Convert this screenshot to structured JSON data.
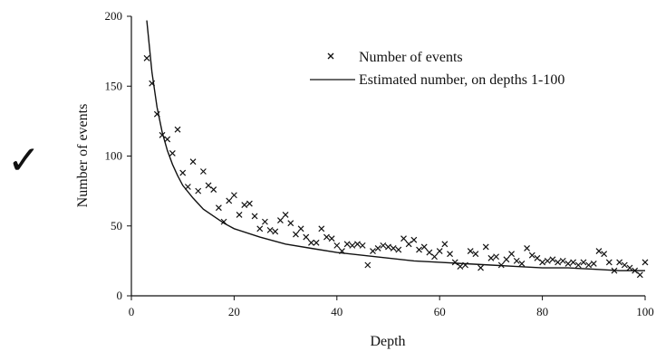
{
  "chart_data": {
    "type": "scatter",
    "title": "",
    "xlabel": "Depth",
    "ylabel": "Number of events",
    "xlim": [
      0,
      100
    ],
    "ylim": [
      0,
      200
    ],
    "xticks": [
      "0",
      "20",
      "40",
      "60",
      "80",
      "100"
    ],
    "yticks": [
      "0",
      "50",
      "100",
      "150",
      "200"
    ],
    "grid": false,
    "legend_position": "top-right",
    "series": [
      {
        "name": "Number of events",
        "kind": "markers",
        "marker": "x",
        "x": [
          3,
          4,
          5,
          6,
          7,
          8,
          9,
          10,
          11,
          12,
          13,
          14,
          15,
          16,
          17,
          18,
          19,
          20,
          21,
          22,
          23,
          24,
          25,
          26,
          27,
          28,
          29,
          30,
          31,
          32,
          33,
          34,
          35,
          36,
          37,
          38,
          39,
          40,
          41,
          42,
          43,
          44,
          45,
          46,
          47,
          48,
          49,
          50,
          51,
          52,
          53,
          54,
          55,
          56,
          57,
          58,
          59,
          60,
          61,
          62,
          63,
          64,
          65,
          66,
          67,
          68,
          69,
          70,
          71,
          72,
          73,
          74,
          75,
          76,
          77,
          78,
          79,
          80,
          81,
          82,
          83,
          84,
          85,
          86,
          87,
          88,
          89,
          90,
          91,
          92,
          93,
          94,
          95,
          96,
          97,
          98,
          99,
          100
        ],
        "y": [
          170,
          152,
          130,
          115,
          112,
          102,
          119,
          88,
          78,
          96,
          75,
          89,
          79,
          76,
          63,
          53,
          68,
          72,
          58,
          65,
          66,
          57,
          48,
          53,
          47,
          46,
          54,
          58,
          52,
          44,
          48,
          42,
          38,
          38,
          48,
          42,
          41,
          36,
          32,
          37,
          36,
          37,
          36,
          22,
          32,
          34,
          36,
          35,
          34,
          33,
          41,
          37,
          40,
          33,
          35,
          31,
          28,
          32,
          37,
          30,
          24,
          21,
          22,
          32,
          30,
          20,
          35,
          27,
          28,
          22,
          26,
          30,
          25,
          23,
          34,
          29,
          27,
          24,
          25,
          26,
          24,
          25,
          23,
          24,
          22,
          24,
          22,
          23,
          32,
          30,
          24,
          18,
          24,
          22,
          20,
          18,
          15,
          24
        ]
      },
      {
        "name": "Estimated number, on depths 1-100",
        "kind": "line",
        "x": [
          3,
          4,
          5,
          6,
          7,
          8,
          9,
          10,
          12,
          14,
          16,
          18,
          20,
          25,
          30,
          35,
          40,
          45,
          50,
          55,
          60,
          65,
          70,
          75,
          80,
          85,
          90,
          95,
          100
        ],
        "y": [
          197,
          160,
          135,
          117,
          104,
          94,
          86,
          79,
          70,
          62,
          57,
          52,
          48,
          42,
          37,
          34,
          31,
          29,
          27,
          25,
          24,
          23,
          22,
          21,
          20,
          20,
          19,
          18,
          18
        ]
      }
    ]
  },
  "decoration": {
    "check_mark": "✓"
  }
}
